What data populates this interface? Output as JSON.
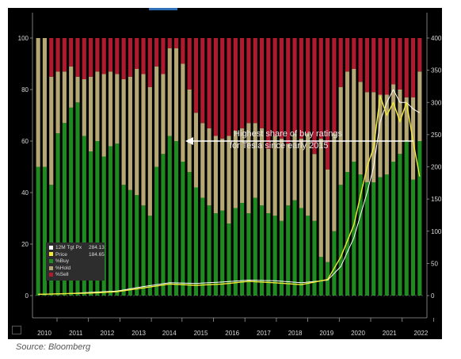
{
  "colors": {
    "buy": "#1f8a1f",
    "hold": "#b5a874",
    "sell": "#b01a2e",
    "price": "#f2ea3a",
    "target": "#ffffff",
    "background": "#000000"
  },
  "annotation": {
    "line1": "Highest share of buy ratings",
    "line2": "for Tesla since early 2015"
  },
  "source": "Source: Bloomberg",
  "legend": [
    {
      "label": "12M Tgt Px",
      "value": "284.13",
      "color": "#ffffff"
    },
    {
      "label": "Price",
      "value": "184.65",
      "color": "#f2ea3a"
    },
    {
      "label": "%Buy",
      "value": "",
      "color": "#1f8a1f"
    },
    {
      "label": "%Hold",
      "value": "",
      "color": "#b5a874"
    },
    {
      "label": "%Sell",
      "value": "",
      "color": "#b01a2e"
    }
  ],
  "chart_data": {
    "type": "bar",
    "stacked": true,
    "x_tick_labels": [
      "2010",
      "2011",
      "2012",
      "2013",
      "2014",
      "2015",
      "2016",
      "2017",
      "2018",
      "2019",
      "2020",
      "2021",
      "2022"
    ],
    "y_left": {
      "lim": [
        0,
        100
      ],
      "ticks": [
        0,
        20,
        40,
        60,
        80,
        100
      ]
    },
    "y_right": {
      "lim": [
        0,
        400
      ],
      "ticks": [
        0,
        50,
        100,
        150,
        200,
        250,
        300,
        350,
        400
      ]
    },
    "series": [
      {
        "name": "%Buy",
        "axis": "left",
        "values": [
          50,
          50,
          43,
          63,
          67,
          73,
          75,
          62,
          56,
          60,
          54,
          58,
          59,
          43,
          41,
          39,
          35,
          31,
          50,
          55,
          62,
          60,
          52,
          48,
          42,
          38,
          35,
          32,
          33,
          28,
          34,
          36,
          32,
          38,
          35,
          32,
          31,
          29,
          35,
          37,
          34,
          31,
          29,
          15,
          13,
          25,
          43,
          48,
          52,
          47,
          44,
          44,
          46,
          47,
          52,
          55,
          60,
          45,
          60
        ]
      },
      {
        "name": "%Hold",
        "axis": "left",
        "values": [
          50,
          50,
          42,
          24,
          20,
          16,
          10,
          22,
          29,
          27,
          32,
          29,
          27,
          41,
          44,
          49,
          51,
          50,
          39,
          31,
          34,
          36,
          38,
          32,
          29,
          29,
          30,
          30,
          28,
          34,
          30,
          29,
          35,
          29,
          30,
          25,
          31,
          32,
          24,
          26,
          27,
          32,
          26,
          46,
          36,
          38,
          38,
          39,
          36,
          36,
          35,
          35,
          32,
          31,
          30,
          25,
          17,
          32,
          27
        ]
      },
      {
        "name": "%Sell",
        "axis": "left",
        "values": [
          0,
          0,
          15,
          13,
          13,
          11,
          15,
          16,
          15,
          13,
          14,
          13,
          14,
          16,
          15,
          12,
          14,
          19,
          11,
          14,
          4,
          4,
          10,
          20,
          29,
          33,
          35,
          38,
          39,
          38,
          36,
          35,
          33,
          33,
          35,
          43,
          38,
          39,
          41,
          37,
          39,
          37,
          45,
          39,
          51,
          37,
          19,
          13,
          12,
          17,
          21,
          21,
          22,
          22,
          18,
          20,
          23,
          23,
          13
        ]
      },
      {
        "name": "Price",
        "axis": "right",
        "x": [
          0,
          4,
          8,
          12,
          16,
          20,
          24,
          28,
          32,
          36,
          40,
          44,
          46,
          48,
          50,
          51,
          52,
          53,
          54,
          55,
          56,
          57,
          58
        ],
        "values": [
          2,
          3,
          4,
          6,
          12,
          18,
          16,
          18,
          22,
          20,
          17,
          25,
          60,
          110,
          200,
          230,
          310,
          280,
          300,
          270,
          300,
          240,
          185
        ]
      },
      {
        "name": "12M Tgt Px",
        "axis": "right",
        "x": [
          0,
          4,
          8,
          12,
          16,
          20,
          24,
          28,
          32,
          36,
          40,
          44,
          46,
          48,
          50,
          51,
          52,
          53,
          54,
          55,
          56,
          57,
          58
        ],
        "values": [
          2,
          3,
          5,
          7,
          14,
          20,
          19,
          21,
          24,
          23,
          20,
          24,
          45,
          90,
          160,
          200,
          270,
          300,
          320,
          300,
          300,
          290,
          284
        ]
      }
    ]
  }
}
